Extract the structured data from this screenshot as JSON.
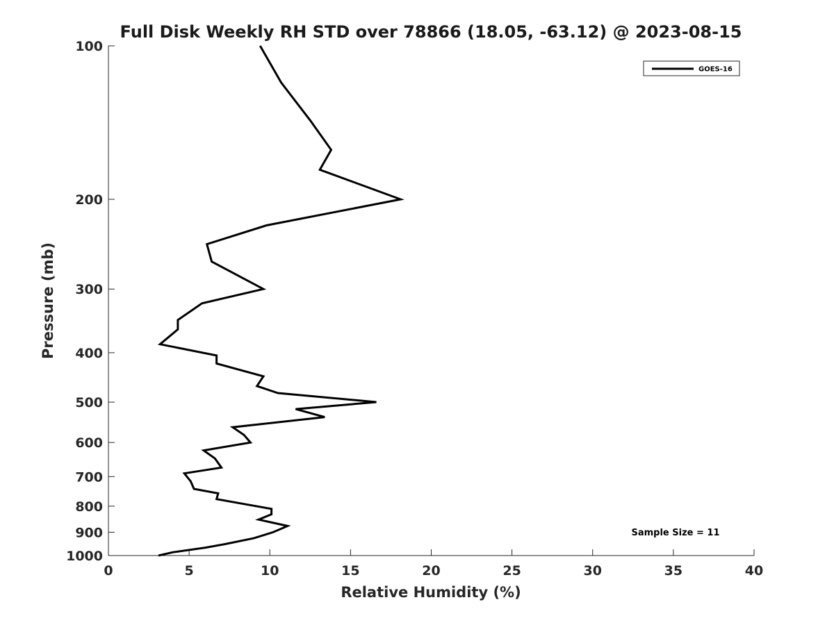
{
  "chart_data": {
    "type": "line",
    "title": "Full Disk Weekly RH STD over 78866 (18.05, -63.12) @ 2023-08-15",
    "xlabel": "Relative Humidity (%)",
    "ylabel": "Pressure (mb)",
    "xlim": [
      0,
      40
    ],
    "ylim": [
      100,
      1000
    ],
    "yscale": "log",
    "y_reversed": true,
    "xticks": [
      0,
      5,
      10,
      15,
      20,
      25,
      30,
      35,
      40
    ],
    "yticks": [
      100,
      200,
      300,
      400,
      500,
      600,
      700,
      800,
      900,
      1000
    ],
    "grid": false,
    "legend": {
      "position": "top-right",
      "entries": [
        "GOES-16"
      ]
    },
    "annotation": "Sample Size = 11",
    "series": [
      {
        "name": "GOES-16",
        "color": "#000000",
        "x": [
          9.4,
          10.7,
          12.5,
          13.8,
          13.1,
          18.1,
          9.8,
          6.1,
          6.4,
          9.6,
          5.8,
          4.3,
          4.3,
          3.2,
          6.7,
          6.7,
          9.6,
          9.2,
          10.5,
          16.6,
          11.6,
          13.4,
          7.7,
          8.4,
          8.8,
          5.9,
          6.6,
          7.0,
          4.7,
          5.1,
          5.3,
          6.8,
          6.7,
          10.1,
          10.1,
          9.3,
          11.1,
          10.2,
          9.0,
          7.2,
          6.0,
          4.0,
          3.1
        ],
        "y": [
          100,
          118,
          140,
          160,
          175,
          200,
          225,
          245,
          265,
          300,
          320,
          345,
          360,
          385,
          405,
          420,
          445,
          465,
          480,
          500,
          516,
          535,
          560,
          580,
          600,
          622,
          645,
          672,
          690,
          715,
          740,
          755,
          775,
          810,
          830,
          850,
          875,
          900,
          925,
          950,
          965,
          985,
          1000
        ]
      }
    ]
  }
}
